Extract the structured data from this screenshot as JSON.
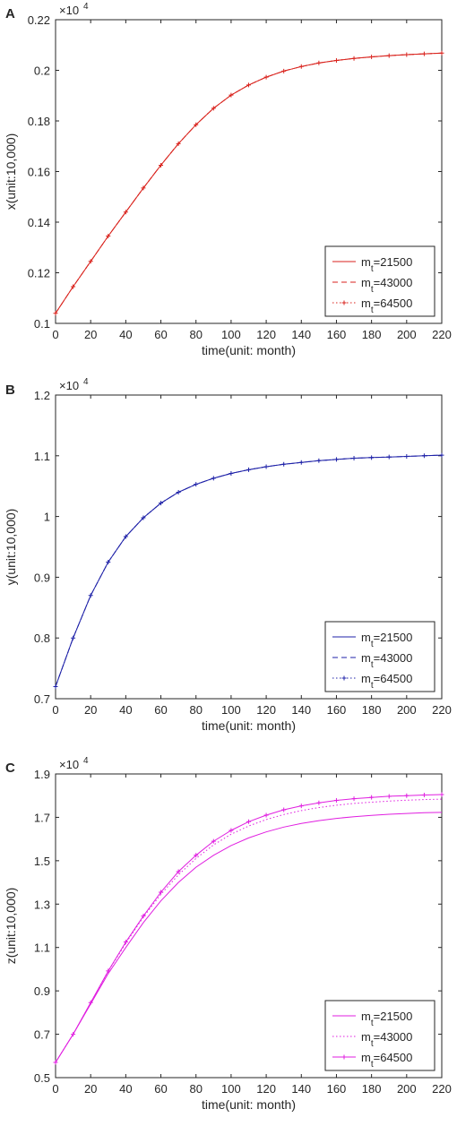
{
  "chart_data": [
    {
      "panel_label": "A",
      "type": "line",
      "xlabel": "time(unit: month)",
      "ylabel": "x(unit:10,000)",
      "exponent_label": "×10",
      "exponent_power": "4",
      "xlim": [
        0,
        220
      ],
      "ylim": [
        0.1,
        0.22
      ],
      "xticks": [
        0,
        20,
        40,
        60,
        80,
        100,
        120,
        140,
        160,
        180,
        200,
        220
      ],
      "yticks": [
        0.1,
        0.12,
        0.14,
        0.16,
        0.18,
        0.2,
        0.22
      ],
      "ytick_labels": [
        "0.1",
        "0.12",
        "0.14",
        "0.16",
        "0.18",
        "0.2",
        "0.22"
      ],
      "grid": false,
      "legend_position": "lower-right",
      "x": [
        0,
        10,
        20,
        30,
        40,
        50,
        60,
        70,
        80,
        90,
        100,
        110,
        120,
        130,
        140,
        150,
        160,
        170,
        180,
        190,
        200,
        210,
        220
      ],
      "series": [
        {
          "name": "m_t=21500",
          "color": "#d9221c",
          "style": "solid",
          "marker": "none",
          "values": [
            0.104,
            0.1145,
            0.1245,
            0.1345,
            0.144,
            0.1535,
            0.1625,
            0.171,
            0.1785,
            0.185,
            0.1902,
            0.1942,
            0.1973,
            0.1997,
            0.2015,
            0.2029,
            0.2039,
            0.2047,
            0.2053,
            0.2058,
            0.2062,
            0.2065,
            0.2068
          ]
        },
        {
          "name": "m_t=43000",
          "color": "#d9221c",
          "style": "dashed",
          "marker": "none",
          "values": [
            0.104,
            0.1145,
            0.1245,
            0.1345,
            0.144,
            0.1535,
            0.1625,
            0.171,
            0.1785,
            0.185,
            0.1902,
            0.1942,
            0.1973,
            0.1997,
            0.2015,
            0.2029,
            0.2039,
            0.2047,
            0.2053,
            0.2058,
            0.2062,
            0.2065,
            0.2068
          ]
        },
        {
          "name": "m_t=64500",
          "color": "#d9221c",
          "style": "dotted",
          "marker": "plus",
          "values": [
            0.104,
            0.1145,
            0.1245,
            0.1345,
            0.144,
            0.1535,
            0.1625,
            0.171,
            0.1785,
            0.185,
            0.1902,
            0.1942,
            0.1973,
            0.1997,
            0.2015,
            0.2029,
            0.2039,
            0.2047,
            0.2053,
            0.2058,
            0.2062,
            0.2065,
            0.2068
          ]
        }
      ]
    },
    {
      "panel_label": "B",
      "type": "line",
      "xlabel": "time(unit: month)",
      "ylabel": "y(unit:10,000)",
      "exponent_label": "×10",
      "exponent_power": "4",
      "xlim": [
        0,
        220
      ],
      "ylim": [
        0.7,
        1.2
      ],
      "xticks": [
        0,
        20,
        40,
        60,
        80,
        100,
        120,
        140,
        160,
        180,
        200,
        220
      ],
      "yticks": [
        0.7,
        0.8,
        0.9,
        1.0,
        1.1,
        1.2
      ],
      "ytick_labels": [
        "0.7",
        "0.8",
        "0.9",
        "1",
        "1.1",
        "1.2"
      ],
      "grid": false,
      "legend_position": "lower-right",
      "x": [
        0,
        10,
        20,
        30,
        40,
        50,
        60,
        70,
        80,
        90,
        100,
        110,
        120,
        130,
        140,
        150,
        160,
        170,
        180,
        190,
        200,
        210,
        220
      ],
      "series": [
        {
          "name": "m_t=21500",
          "color": "#1f22a8",
          "style": "solid",
          "marker": "none",
          "values": [
            0.72,
            0.8,
            0.87,
            0.925,
            0.967,
            0.998,
            1.022,
            1.04,
            1.053,
            1.063,
            1.071,
            1.077,
            1.082,
            1.086,
            1.089,
            1.092,
            1.094,
            1.096,
            1.097,
            1.098,
            1.099,
            1.1,
            1.101
          ]
        },
        {
          "name": "m_t=43000",
          "color": "#1f22a8",
          "style": "dashed",
          "marker": "none",
          "values": [
            0.72,
            0.8,
            0.87,
            0.925,
            0.967,
            0.998,
            1.022,
            1.04,
            1.053,
            1.063,
            1.071,
            1.077,
            1.082,
            1.086,
            1.089,
            1.092,
            1.094,
            1.096,
            1.097,
            1.098,
            1.099,
            1.1,
            1.101
          ]
        },
        {
          "name": "m_t=64500",
          "color": "#1f22a8",
          "style": "dotted",
          "marker": "plus",
          "values": [
            0.72,
            0.8,
            0.87,
            0.925,
            0.967,
            0.998,
            1.022,
            1.04,
            1.053,
            1.063,
            1.071,
            1.077,
            1.082,
            1.086,
            1.089,
            1.092,
            1.094,
            1.096,
            1.097,
            1.098,
            1.099,
            1.1,
            1.101
          ]
        }
      ]
    },
    {
      "panel_label": "C",
      "type": "line",
      "xlabel": "time(unit: month)",
      "ylabel": "z(unit:10,000)",
      "exponent_label": "×10",
      "exponent_power": "4",
      "xlim": [
        0,
        220
      ],
      "ylim": [
        0.5,
        1.9
      ],
      "xticks": [
        0,
        20,
        40,
        60,
        80,
        100,
        120,
        140,
        160,
        180,
        200,
        220
      ],
      "yticks": [
        0.5,
        0.7,
        0.9,
        1.1,
        1.3,
        1.5,
        1.7,
        1.9
      ],
      "ytick_labels": [
        "0.5",
        "0.7",
        "0.9",
        "1.1",
        "1.3",
        "1.5",
        "1.7",
        "1.9"
      ],
      "grid": false,
      "legend_position": "lower-right",
      "x": [
        0,
        10,
        20,
        30,
        40,
        50,
        60,
        70,
        80,
        90,
        100,
        110,
        120,
        130,
        140,
        150,
        160,
        170,
        180,
        190,
        200,
        210,
        220
      ],
      "series": [
        {
          "name": "m_t=21500",
          "color": "#e01ee0",
          "style": "solid",
          "marker": "none",
          "values": [
            0.57,
            0.7,
            0.84,
            0.98,
            1.1,
            1.215,
            1.315,
            1.4,
            1.47,
            1.525,
            1.57,
            1.605,
            1.633,
            1.655,
            1.672,
            1.685,
            1.695,
            1.703,
            1.709,
            1.714,
            1.718,
            1.721,
            1.723
          ]
        },
        {
          "name": "m_t=43000",
          "color": "#e01ee0",
          "style": "dotted",
          "marker": "none",
          "values": [
            0.57,
            0.7,
            0.845,
            0.99,
            1.12,
            1.24,
            1.345,
            1.435,
            1.51,
            1.573,
            1.622,
            1.66,
            1.69,
            1.713,
            1.731,
            1.745,
            1.756,
            1.764,
            1.77,
            1.775,
            1.779,
            1.782,
            1.784
          ]
        },
        {
          "name": "m_t=64500",
          "color": "#e01ee0",
          "style": "solid",
          "marker": "plus",
          "values": [
            0.57,
            0.7,
            0.846,
            0.992,
            1.125,
            1.245,
            1.355,
            1.45,
            1.525,
            1.59,
            1.64,
            1.68,
            1.71,
            1.735,
            1.753,
            1.767,
            1.778,
            1.786,
            1.792,
            1.797,
            1.8,
            1.803,
            1.805
          ]
        }
      ]
    }
  ]
}
